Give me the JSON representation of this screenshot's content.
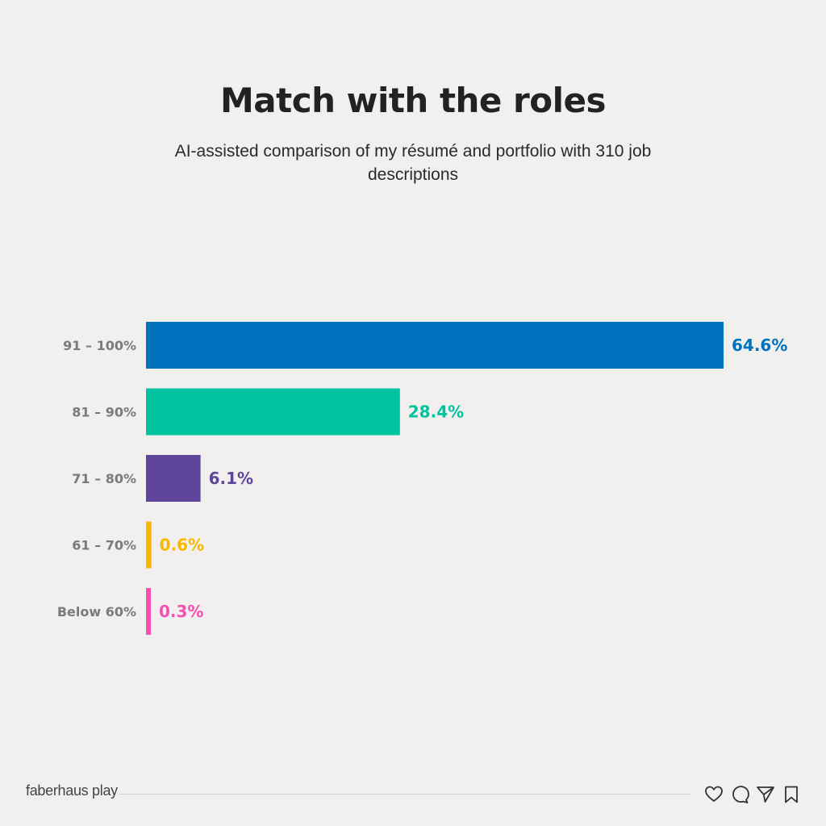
{
  "chart_data": {
    "type": "bar",
    "orientation": "horizontal",
    "title": "Match with the roles",
    "subtitle": "AI-assisted comparison of my résumé and portfolio with 310 job descriptions",
    "categories": [
      "91 – 100%",
      "81 – 90%",
      "71 – 80%",
      "61 – 70%",
      "Below 60%"
    ],
    "values": [
      64.6,
      28.4,
      6.1,
      0.6,
      0.3
    ],
    "value_labels": [
      "64.6%",
      "28.4%",
      "6.1%",
      "0.6%",
      "0.3%"
    ],
    "colors": [
      "#0073be",
      "#00c39f",
      "#5e449a",
      "#fbb700",
      "#f54fb2"
    ],
    "xlim": [
      0,
      64.6
    ],
    "grid": false,
    "legend": "none",
    "xlabel": "",
    "ylabel": ""
  },
  "footer": {
    "brand": "faberhaus play",
    "icons": [
      "heart-icon",
      "comment-icon",
      "send-icon",
      "bookmark-icon"
    ]
  }
}
